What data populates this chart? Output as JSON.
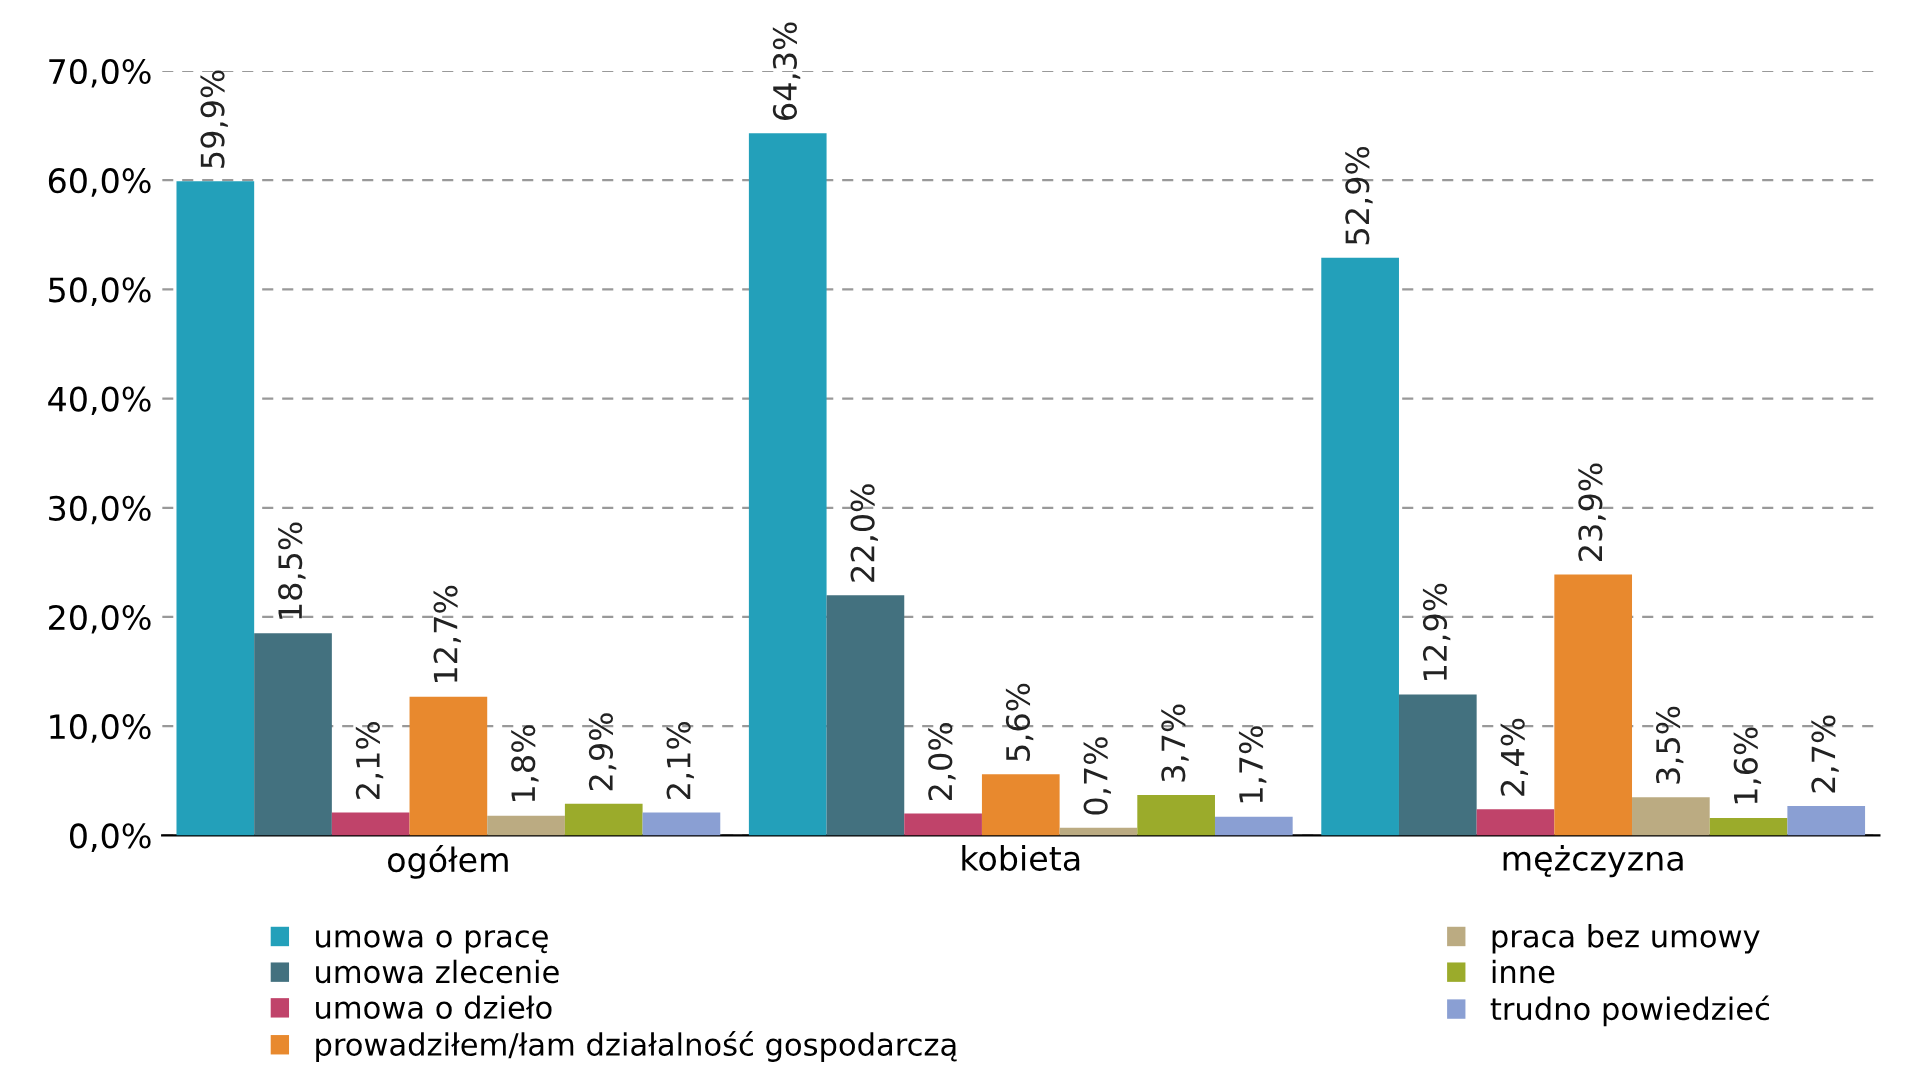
{
  "chart_data": {
    "type": "bar",
    "categories": [
      "ogółem",
      "kobieta",
      "mężczyzna"
    ],
    "series": [
      {
        "name": "umowa o pracę",
        "color": "#23a0ba",
        "values": [
          59.9,
          64.3,
          52.9
        ],
        "value_labels": [
          "59,9%",
          "64,3%",
          "52,9%"
        ]
      },
      {
        "name": "umowa zlecenie",
        "color": "#43717f",
        "values": [
          18.5,
          22.0,
          12.9
        ],
        "value_labels": [
          "18,5%",
          "22,0%",
          "12,9%"
        ]
      },
      {
        "name": "umowa o dzieło",
        "color": "#c0436a",
        "values": [
          2.1,
          2.0,
          2.4
        ],
        "value_labels": [
          "2,1%",
          "2,0%",
          "2,4%"
        ]
      },
      {
        "name": "prowadziłem/łam działalność gospodarczą",
        "color": "#e8892e",
        "values": [
          12.7,
          5.6,
          23.9
        ],
        "value_labels": [
          "12,7%",
          "5,6%",
          "23,9%"
        ]
      },
      {
        "name": "praca bez umowy",
        "color": "#bbab82",
        "values": [
          1.8,
          0.7,
          3.5
        ],
        "value_labels": [
          "1,8%",
          "0,7%",
          "3,5%"
        ]
      },
      {
        "name": "inne",
        "color": "#9bab2b",
        "values": [
          2.9,
          3.7,
          1.6
        ],
        "value_labels": [
          "2,9%",
          "3,7%",
          "1,6%"
        ]
      },
      {
        "name": "trudno powiedzieć",
        "color": "#8a9fd3",
        "values": [
          2.1,
          1.7,
          2.7
        ],
        "value_labels": [
          "2,1%",
          "1,7%",
          "2,7%"
        ]
      }
    ],
    "ylim": [
      0,
      70
    ],
    "yticks": [
      {
        "value": 0,
        "label": "0,0%"
      },
      {
        "value": 10,
        "label": "10,0%"
      },
      {
        "value": 20,
        "label": "20,0%"
      },
      {
        "value": 30,
        "label": "30,0%"
      },
      {
        "value": 40,
        "label": "40,0%"
      },
      {
        "value": 50,
        "label": "50,0%"
      },
      {
        "value": 60,
        "label": "60,0%"
      },
      {
        "value": 70,
        "label": "70,0%"
      }
    ],
    "grid": "y",
    "line_style": "dashed",
    "legend": "bottom"
  }
}
